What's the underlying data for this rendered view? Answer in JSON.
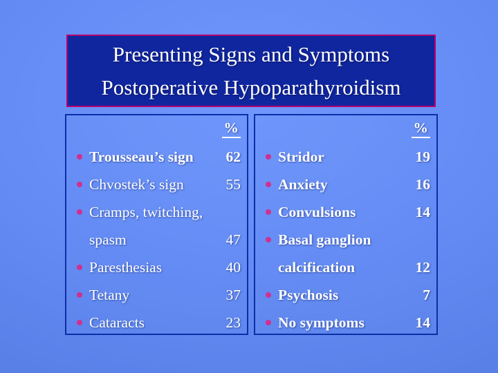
{
  "title": {
    "line1": "Presenting Signs and Symptoms",
    "line2": "Postoperative Hypoparathyroidism"
  },
  "panels": [
    {
      "name": "signs-panel-left",
      "header": "%",
      "items": [
        {
          "label": "Trousseau’s sign",
          "label2": null,
          "value": "62",
          "bold": true
        },
        {
          "label": "Chvostek’s sign",
          "label2": null,
          "value": "55",
          "bold": false
        },
        {
          "label": "Cramps, twitching,",
          "label2": "spasm",
          "value": "47",
          "bold": false
        },
        {
          "label": "Paresthesias",
          "label2": null,
          "value": "40",
          "bold": false
        },
        {
          "label": "Tetany",
          "label2": null,
          "value": "37",
          "bold": false
        },
        {
          "label": "Cataracts",
          "label2": null,
          "value": "23",
          "bold": false
        }
      ]
    },
    {
      "name": "symptoms-panel-right",
      "header": "%",
      "items": [
        {
          "label": "Stridor",
          "label2": null,
          "value": "19",
          "bold": true
        },
        {
          "label": "Anxiety",
          "label2": null,
          "value": "16",
          "bold": true
        },
        {
          "label": "Convulsions",
          "label2": null,
          "value": "14",
          "bold": true
        },
        {
          "label": "Basal ganglion",
          "label2": "calcification",
          "value": "12",
          "bold": true
        },
        {
          "label": "Psychosis",
          "label2": null,
          "value": "7",
          "bold": true
        },
        {
          "label": "No symptoms",
          "label2": null,
          "value": "14",
          "bold": true
        }
      ]
    }
  ],
  "colors": {
    "background_center": "#7097fc",
    "background_edge": "#4e75d6",
    "title_fill": "#10269f",
    "title_border": "#b8006d",
    "panel_border": "#0c2ea6",
    "bullet": "#cf3090",
    "text": "#ffffff"
  }
}
